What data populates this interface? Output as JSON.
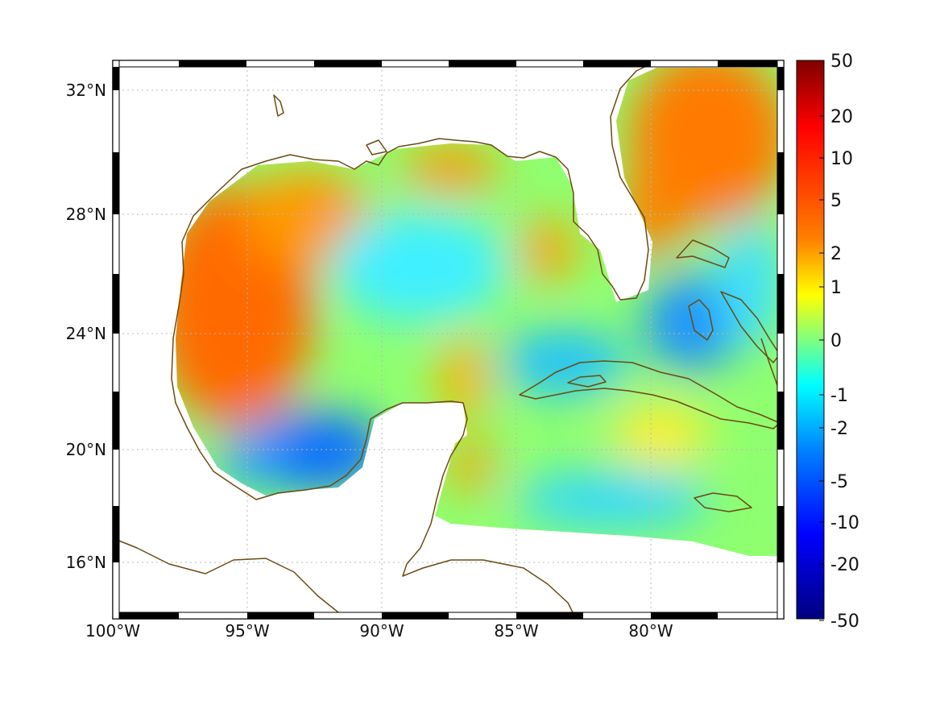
{
  "map": {
    "type": "heatmap",
    "projection": "Mercator",
    "longitude_range": [
      -100,
      -75.5
    ],
    "latitude_range": [
      14.2,
      33
    ],
    "lat_ticks": [
      {
        "value": 32,
        "label": "32°N"
      },
      {
        "value": 28,
        "label": "28°N"
      },
      {
        "value": 24,
        "label": "24°N"
      },
      {
        "value": 20,
        "label": "20°N"
      },
      {
        "value": 16,
        "label": "16°N"
      }
    ],
    "lon_ticks": [
      {
        "value": -100,
        "label": "100°W"
      },
      {
        "value": -95,
        "label": "95°W"
      },
      {
        "value": -90,
        "label": "90°W"
      },
      {
        "value": -85,
        "label": "85°W"
      },
      {
        "value": -80,
        "label": "80°W"
      }
    ],
    "grid": true,
    "coastline_color": "#6b4a12"
  },
  "chart_data": {
    "type": "heatmap",
    "colormap": "jet",
    "colorbar_ticks": [
      "50",
      "20",
      "10",
      "5",
      "2",
      "1",
      "0",
      "-1",
      "-2",
      "-5",
      "-10",
      "-20",
      "-50"
    ],
    "colorbar_range": [
      -50,
      50
    ],
    "regions": [
      {
        "name": "Western Gulf (Texas/Mexico coast)",
        "approx_value": 5
      },
      {
        "name": "Northeastern Atlantic off Georgia/Carolinas",
        "approx_value": 5
      },
      {
        "name": "Bay of Campeche",
        "approx_value": -4
      },
      {
        "name": "Central Gulf",
        "approx_value": 0
      },
      {
        "name": "Straits of Florida / Bahamas",
        "approx_value": -2
      },
      {
        "name": "Northwestern Caribbean",
        "approx_value": 0.5
      }
    ]
  }
}
